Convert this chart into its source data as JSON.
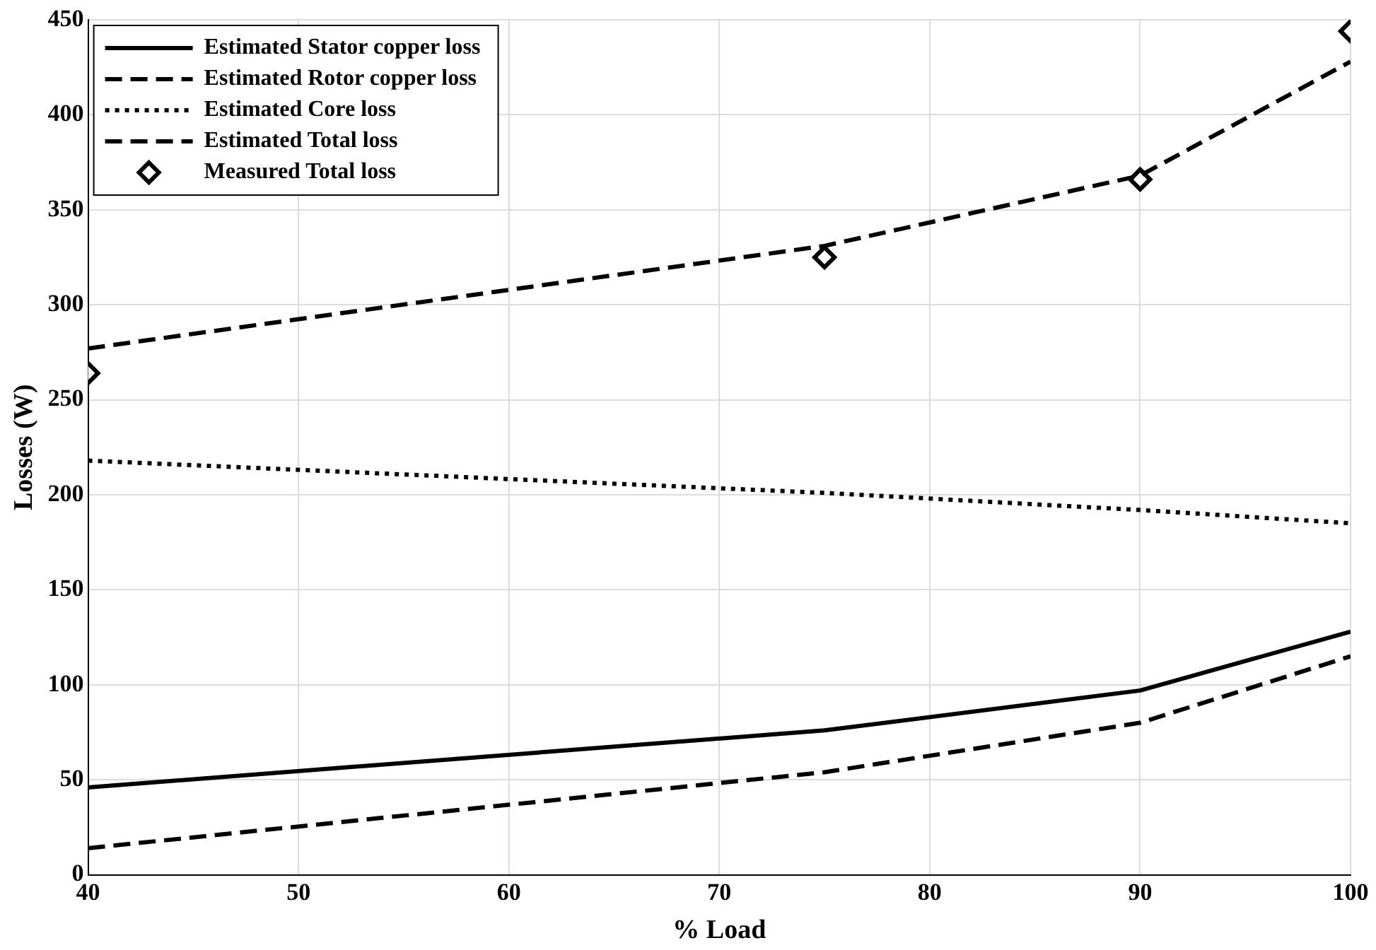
{
  "chart_data": {
    "type": "line",
    "xlabel": "% Load",
    "ylabel": "Losses (W)",
    "xlim": [
      40,
      100
    ],
    "xticks": [
      40,
      50,
      60,
      70,
      80,
      90,
      100
    ],
    "ylim": [
      0,
      450
    ],
    "yticks": [
      0,
      50,
      100,
      150,
      200,
      250,
      300,
      350,
      400,
      450
    ],
    "grid": true,
    "legend": "top left",
    "x": [
      40,
      75,
      90,
      100
    ],
    "series": [
      {
        "name": "Estimated Stator copper loss",
        "color": "#000000",
        "line_style": "solid",
        "marker": "none",
        "values": [
          46,
          76,
          97,
          128
        ]
      },
      {
        "name": "Estimated Rotor copper loss",
        "color": "#000000",
        "line_style": "dashed",
        "marker": "none",
        "values": [
          14,
          54,
          80,
          115
        ]
      },
      {
        "name": "Estimated Core loss",
        "color": "#000000",
        "line_style": "dotted",
        "marker": "none",
        "values": [
          218,
          201,
          192,
          185
        ]
      },
      {
        "name": "Estimated Total loss",
        "color": "#000000",
        "line_style": "dashed",
        "marker": "none",
        "values": [
          277,
          331,
          368,
          428
        ]
      },
      {
        "name": "Measured Total loss",
        "type": "scatter",
        "color": "#000000",
        "marker": "diamond",
        "values": [
          264,
          325,
          366,
          444
        ]
      }
    ]
  }
}
